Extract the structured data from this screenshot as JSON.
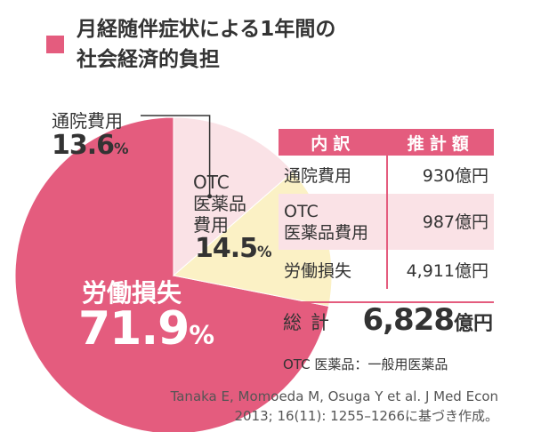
{
  "title": {
    "line1": "月経随伴症状による1年間の",
    "line2": "社会経済的負担"
  },
  "colors": {
    "accent": "#e45c7e",
    "labor_slice": "#e45c7e",
    "otc_slice": "#fbf1c5",
    "clinic_slice": "#fae2e6"
  },
  "chart_data": {
    "type": "pie",
    "slices": [
      {
        "label": "労働損失",
        "value": 71.9,
        "display": "71.9",
        "unit": "%"
      },
      {
        "label": "OTC医薬品費用",
        "label_lines": [
          "OTC",
          "医薬品",
          "費用"
        ],
        "value": 14.5,
        "display": "14.5",
        "unit": "%"
      },
      {
        "label": "通院費用",
        "value": 13.6,
        "display": "13.6",
        "unit": "%"
      }
    ]
  },
  "table": {
    "headers": [
      "内訳",
      "推計額"
    ],
    "rows": [
      {
        "item": "通院費用",
        "amount": "930億円"
      },
      {
        "item_lines": [
          "OTC",
          "医薬品費用"
        ],
        "amount": "987億円"
      },
      {
        "item": "労働損失",
        "amount": "4,911億円"
      }
    ],
    "total_label": "総計",
    "total_value": "6,828",
    "total_unit": "億円"
  },
  "note": "OTC 医薬品：一般用医薬品",
  "source": {
    "line1": "Tanaka E, Momoeda M, Osuga Y et al. J Med Econ",
    "line2": "2013; 16(11): 1255–1266に基づき作成。"
  }
}
